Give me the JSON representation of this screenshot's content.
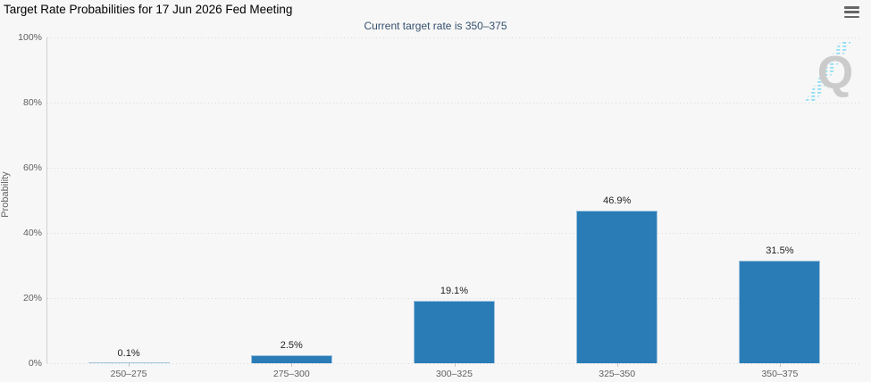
{
  "header": {
    "title": "Target Rate Probabilities for 17 Jun 2026 Fed Meeting"
  },
  "chart_data": {
    "type": "bar",
    "title": "Target Rate Probabilities for 17 Jun 2026 Fed Meeting",
    "subtitle": "Current target rate is 350–375",
    "categories": [
      "250–275",
      "275–300",
      "300–325",
      "325–350",
      "350–375"
    ],
    "values": [
      0.1,
      2.5,
      19.1,
      46.9,
      31.5
    ],
    "data_labels": [
      "0.1%",
      "2.5%",
      "19.1%",
      "46.9%",
      "31.5%"
    ],
    "xlabel": "",
    "ylabel": "Probability",
    "ylim": [
      0,
      100
    ],
    "ytick_labels": [
      "0%",
      "20%",
      "40%",
      "60%",
      "80%",
      "100%"
    ],
    "grid": "horizontal-dotted",
    "legend": "none",
    "bar_color": "#2a7cb7"
  },
  "icons": {
    "menu": "hamburger-menu-icon"
  },
  "watermark": {
    "letter": "Q"
  },
  "colors": {
    "background": "#f7f7f7",
    "bar": "#2a7cb7",
    "subtitle_text": "#35506e",
    "axis_text": "#606063",
    "grid": "#d9d9d9",
    "watermark_letter": "#cbcbcb",
    "watermark_stripes": "#8adcf4"
  }
}
